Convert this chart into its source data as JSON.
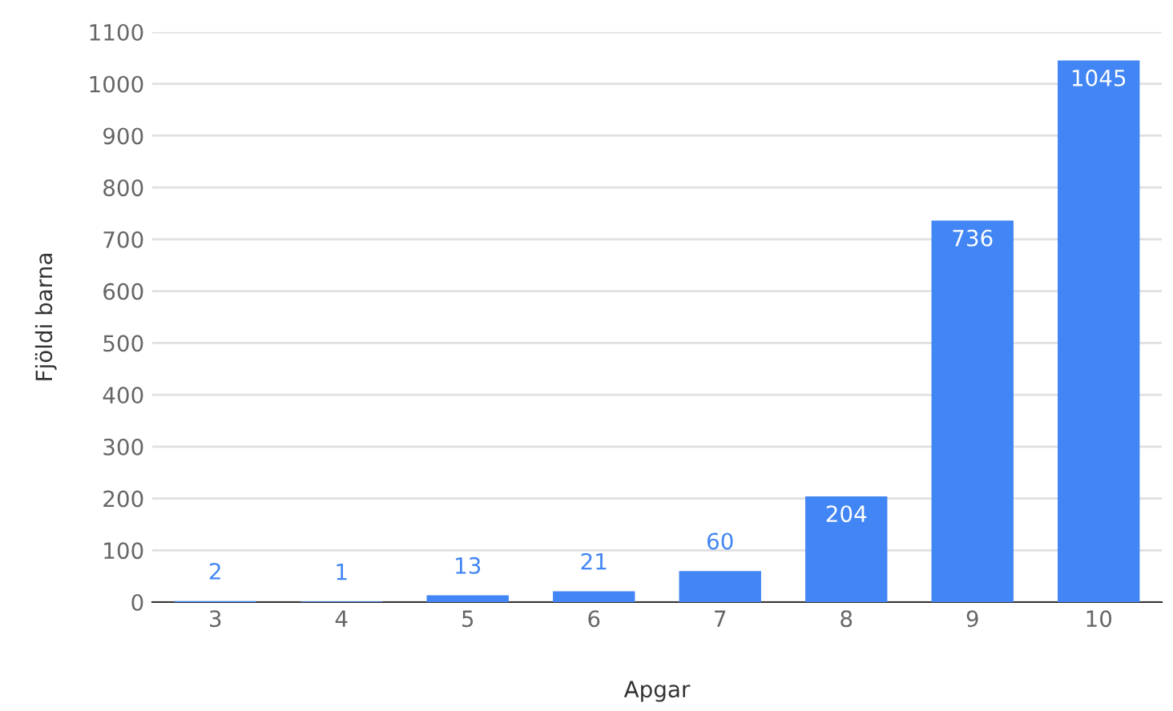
{
  "chart_data": {
    "type": "bar",
    "xlabel": "Apgar",
    "ylabel": "Fjöldi barna",
    "categories": [
      "3",
      "4",
      "5",
      "6",
      "7",
      "8",
      "9",
      "10"
    ],
    "values": [
      2,
      1,
      13,
      21,
      60,
      204,
      736,
      1045
    ],
    "color": "#4285f4",
    "ylim": [
      0,
      1100
    ],
    "yticks": [
      0,
      100,
      200,
      300,
      400,
      500,
      600,
      700,
      800,
      900,
      1000,
      1100
    ],
    "grid": "y",
    "data_labels": true,
    "legend": false
  }
}
